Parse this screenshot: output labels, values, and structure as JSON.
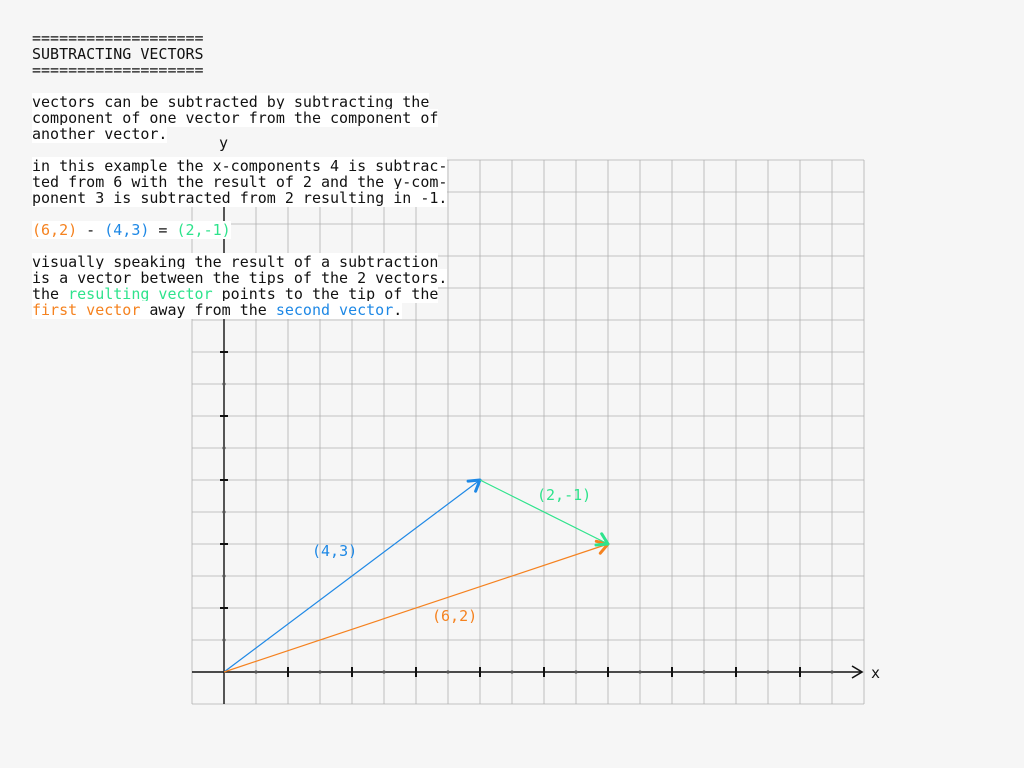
{
  "header": {
    "rule_top": "===================",
    "title": "SUBTRACTING VECTORS",
    "rule_bottom": "==================="
  },
  "paragraph1": {
    "lines": [
      "vectors can be subtracted by subtracting the",
      "component of one vector from the component of",
      "another vector."
    ]
  },
  "paragraph2": {
    "lines": [
      "in this example the x-components 4 is subtrac-",
      "ted from 6 with the result of 2 and the y-com-",
      "ponent 3 is subtracted from 2 resulting in -1."
    ]
  },
  "equation": {
    "first": "(6,2)",
    "minus": " - ",
    "second": "(4,3)",
    "equals": " = ",
    "result": "(2,-1)"
  },
  "paragraph3": {
    "line1": "visually speaking the result of a subtraction",
    "line2": "is a vector between the tips of the 2 vectors.",
    "line3_a": "the ",
    "line3_b": "resulting vector",
    "line3_c": " points to the tip of the",
    "line4_a": "first vector",
    "line4_b": " away from the ",
    "line4_c": "second vector",
    "line4_d": "."
  },
  "colors": {
    "first": "#f5821f",
    "second": "#1e88e5",
    "result": "#2ee38c",
    "grid": "#b0b0b0",
    "axis": "#111111"
  },
  "axes": {
    "x_label": "x",
    "y_label": "y"
  },
  "vectors": [
    {
      "id": "second",
      "label": "(4,3)",
      "from": [
        0,
        0
      ],
      "to": [
        4,
        3
      ],
      "color": "#1e88e5"
    },
    {
      "id": "first",
      "label": "(6,2)",
      "from": [
        0,
        0
      ],
      "to": [
        6,
        2
      ],
      "color": "#f5821f"
    },
    {
      "id": "result",
      "label": "(2,-1)",
      "from": [
        4,
        3
      ],
      "to": [
        6,
        2
      ],
      "color": "#2ee38c"
    }
  ]
}
